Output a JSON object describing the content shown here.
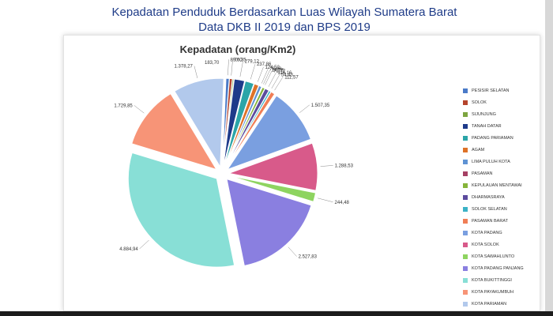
{
  "header": {
    "line1": "Kepadatan Penduduk Berdasarkan Luas Wilayah Sumatera Barat",
    "line2": "Data DKB II 2019 dan BPS 2019"
  },
  "chart_data": {
    "type": "pie",
    "title": "Kepadatan (orang/Km2)",
    "legend_position": "right",
    "categories": [
      "PESISIR SELATAN",
      "SOLOK",
      "SIJUNJUNG",
      "TANAH DATAR",
      "PADANG PARIAMAN",
      "AGAM",
      "LIMA PULUH KOTA",
      "PASAMAN",
      "KEPULAUAN MENTAWAI",
      "DHARMASRAYA",
      "SOLOK SELATAN",
      "PASAMAN BARAT",
      "KOTA PADANG",
      "KOTA SOLOK",
      "KOTA SAWAHLUNTO",
      "KOTA PADANG PANJANG",
      "KOTA BUKITTINGGI",
      "KOTA PAYAKUMBUH",
      "KOTA PARIAMAN"
    ],
    "values": [
      89.0,
      76.35,
      36.0,
      279.12,
      237.86,
      124.52,
      78.08,
      14.78,
      72.72,
      114.16,
      54.43,
      111.57,
      1507.35,
      1288.53,
      244.48,
      2527.83,
      4884.94,
      1729.85,
      1378.27
    ],
    "data_labels": [
      "89,00",
      "76,35",
      "",
      "279,12",
      "237,86",
      "124,52",
      "78,08",
      "14,78",
      "72,72",
      "114,16",
      "54,43",
      "111,57",
      "1.507,35",
      "1.288,53",
      "244,48",
      "2.527,83",
      "4.884,94",
      "1.729,85",
      "1.378,27"
    ],
    "extra_label": "183,70",
    "colors": [
      "#4a7ac8",
      "#b5442c",
      "#7da540",
      "#1e3a8a",
      "#2ba5a8",
      "#de7228",
      "#5f93d4",
      "#a64164",
      "#86b43a",
      "#5c4b9e",
      "#3bb2c6",
      "#f07e56",
      "#7a9fe0",
      "#d85a8a",
      "#8ed460",
      "#8a7fe0",
      "#88dfd6",
      "#f79477",
      "#b2c9ec"
    ]
  }
}
